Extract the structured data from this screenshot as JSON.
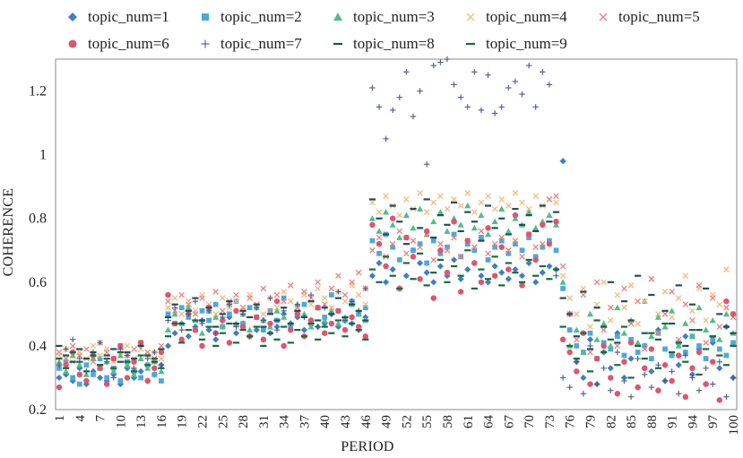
{
  "chart_data": {
    "type": "scatter",
    "xlabel": "PERIOD",
    "ylabel": "COHERENCE",
    "xlim": [
      0,
      100
    ],
    "ylim": [
      0.2,
      1.3
    ],
    "yticks": [
      0.2,
      0.4,
      0.6,
      0.8,
      1,
      1.2
    ],
    "ytick_labels": [
      "0.2",
      "0.4",
      "0.6",
      "0.8",
      "1",
      "1.2"
    ],
    "xticks": [
      1,
      4,
      7,
      10,
      13,
      16,
      19,
      22,
      25,
      28,
      31,
      34,
      37,
      40,
      43,
      46,
      49,
      52,
      55,
      58,
      61,
      64,
      67,
      70,
      73,
      76,
      79,
      82,
      85,
      88,
      91,
      94,
      97,
      100
    ],
    "xtick_labels": [
      "1",
      "4",
      "7",
      "10",
      "13",
      "16",
      "19",
      "22",
      "25",
      "28",
      "31",
      "34",
      "37",
      "40",
      "43",
      "46",
      "49",
      "52",
      "55",
      "58",
      "61",
      "64",
      "67",
      "70",
      "73",
      "76",
      "79",
      "82",
      "85",
      "88",
      "91",
      "94",
      "97",
      "100"
    ],
    "legend": [
      {
        "name": "topic_num=1",
        "marker": "diamond",
        "color": "#3f7fc4"
      },
      {
        "name": "topic_num=2",
        "marker": "square",
        "color": "#4ea8dc"
      },
      {
        "name": "topic_num=3",
        "marker": "triangle",
        "color": "#4fbf8a"
      },
      {
        "name": "topic_num=4",
        "marker": "x",
        "color": "#f2bb7a"
      },
      {
        "name": "topic_num=5",
        "marker": "x",
        "color": "#e8837a"
      },
      {
        "name": "topic_num=6",
        "marker": "circle",
        "color": "#e0556e"
      },
      {
        "name": "topic_num=7",
        "marker": "plus",
        "color": "#4a5a8c"
      },
      {
        "name": "topic_num=8",
        "marker": "dash",
        "color": "#1f4f5c"
      },
      {
        "name": "topic_num=9",
        "marker": "dash",
        "color": "#1a6a3a"
      }
    ],
    "series": [
      {
        "name": "topic_num=1",
        "values": [
          0.3,
          0.31,
          0.29,
          0.33,
          0.28,
          0.32,
          0.3,
          0.29,
          0.31,
          0.28,
          0.33,
          0.3,
          0.32,
          0.29,
          0.31,
          0.34,
          0.4,
          0.44,
          0.47,
          0.43,
          0.46,
          0.48,
          0.45,
          0.42,
          0.46,
          0.49,
          0.44,
          0.47,
          0.43,
          0.45,
          0.48,
          0.44,
          0.46,
          0.5,
          0.47,
          0.49,
          0.45,
          0.48,
          0.46,
          0.47,
          0.5,
          0.46,
          0.48,
          0.47,
          0.45,
          0.49,
          0.62,
          0.66,
          0.6,
          0.64,
          0.58,
          0.62,
          0.7,
          0.66,
          0.63,
          0.6,
          0.65,
          0.62,
          0.67,
          0.61,
          0.64,
          0.66,
          0.62,
          0.6,
          0.65,
          0.63,
          0.61,
          0.64,
          0.62,
          0.66,
          0.6,
          0.63,
          0.65,
          0.64,
          0.98,
          0.5,
          0.35,
          0.3,
          0.42,
          0.28,
          0.38,
          0.33,
          0.44,
          0.3,
          0.36,
          0.27,
          0.4,
          0.32,
          0.45,
          0.29,
          0.37,
          0.34,
          0.43,
          0.31,
          0.39,
          0.28,
          0.41,
          0.33,
          0.46,
          0.3
        ]
      },
      {
        "name": "topic_num=2",
        "values": [
          0.33,
          0.35,
          0.3,
          0.28,
          0.34,
          0.31,
          0.36,
          0.3,
          0.33,
          0.29,
          0.35,
          0.32,
          0.3,
          0.34,
          0.31,
          0.29,
          0.5,
          0.47,
          0.52,
          0.49,
          0.45,
          0.51,
          0.48,
          0.53,
          0.46,
          0.5,
          0.54,
          0.47,
          0.52,
          0.49,
          0.45,
          0.51,
          0.48,
          0.55,
          0.46,
          0.5,
          0.53,
          0.47,
          0.52,
          0.49,
          0.56,
          0.51,
          0.48,
          0.54,
          0.5,
          0.52,
          0.73,
          0.69,
          0.75,
          0.71,
          0.67,
          0.74,
          0.7,
          0.72,
          0.66,
          0.73,
          0.69,
          0.71,
          0.75,
          0.68,
          0.72,
          0.7,
          0.74,
          0.67,
          0.71,
          0.73,
          0.69,
          0.72,
          0.7,
          0.74,
          0.68,
          0.71,
          0.73,
          0.7,
          0.58,
          0.45,
          0.4,
          0.38,
          0.44,
          0.36,
          0.41,
          0.39,
          0.43,
          0.37,
          0.42,
          0.38,
          0.4,
          0.36,
          0.44,
          0.39,
          0.37,
          0.41,
          0.38,
          0.43,
          0.4,
          0.36,
          0.42,
          0.39,
          0.37,
          0.41
        ]
      },
      {
        "name": "topic_num=3",
        "values": [
          0.35,
          0.32,
          0.37,
          0.34,
          0.31,
          0.36,
          0.33,
          0.35,
          0.32,
          0.37,
          0.34,
          0.31,
          0.36,
          0.33,
          0.35,
          0.32,
          0.45,
          0.5,
          0.47,
          0.52,
          0.48,
          0.44,
          0.51,
          0.49,
          0.46,
          0.53,
          0.47,
          0.5,
          0.45,
          0.52,
          0.48,
          0.46,
          0.51,
          0.49,
          0.47,
          0.53,
          0.5,
          0.46,
          0.52,
          0.48,
          0.51,
          0.47,
          0.49,
          0.53,
          0.5,
          0.48,
          0.8,
          0.76,
          0.82,
          0.78,
          0.74,
          0.81,
          0.77,
          0.83,
          0.75,
          0.79,
          0.82,
          0.76,
          0.8,
          0.78,
          0.84,
          0.77,
          0.81,
          0.75,
          0.79,
          0.83,
          0.76,
          0.8,
          0.78,
          0.82,
          0.77,
          0.79,
          0.81,
          0.78,
          0.6,
          0.4,
          0.45,
          0.38,
          0.5,
          0.42,
          0.47,
          0.4,
          0.52,
          0.44,
          0.48,
          0.41,
          0.54,
          0.43,
          0.49,
          0.46,
          0.51,
          0.4,
          0.47,
          0.43,
          0.52,
          0.45,
          0.48,
          0.42,
          0.5,
          0.44
        ]
      },
      {
        "name": "topic_num=4",
        "values": [
          0.37,
          0.39,
          0.35,
          0.38,
          0.36,
          0.4,
          0.37,
          0.39,
          0.35,
          0.38,
          0.4,
          0.36,
          0.39,
          0.37,
          0.38,
          0.36,
          0.52,
          0.55,
          0.5,
          0.54,
          0.51,
          0.56,
          0.53,
          0.5,
          0.55,
          0.52,
          0.54,
          0.51,
          0.56,
          0.53,
          0.5,
          0.55,
          0.52,
          0.57,
          0.54,
          0.51,
          0.56,
          0.53,
          0.58,
          0.55,
          0.52,
          0.57,
          0.54,
          0.59,
          0.56,
          0.53,
          0.85,
          0.82,
          0.87,
          0.84,
          0.81,
          0.86,
          0.83,
          0.88,
          0.82,
          0.85,
          0.87,
          0.83,
          0.86,
          0.84,
          0.88,
          0.82,
          0.85,
          0.87,
          0.83,
          0.86,
          0.84,
          0.88,
          0.85,
          0.83,
          0.87,
          0.84,
          0.86,
          0.85,
          0.62,
          0.55,
          0.5,
          0.58,
          0.46,
          0.53,
          0.6,
          0.48,
          0.56,
          0.52,
          0.59,
          0.47,
          0.54,
          0.61,
          0.5,
          0.57,
          0.49,
          0.55,
          0.62,
          0.51,
          0.58,
          0.48,
          0.56,
          0.53,
          0.64,
          0.5
        ]
      },
      {
        "name": "topic_num=5",
        "values": [
          0.38,
          0.36,
          0.4,
          0.37,
          0.39,
          0.35,
          0.41,
          0.38,
          0.36,
          0.4,
          0.37,
          0.39,
          0.41,
          0.38,
          0.36,
          0.4,
          0.54,
          0.51,
          0.56,
          0.53,
          0.5,
          0.55,
          0.52,
          0.57,
          0.51,
          0.54,
          0.56,
          0.52,
          0.55,
          0.53,
          0.58,
          0.51,
          0.56,
          0.54,
          0.59,
          0.52,
          0.57,
          0.55,
          0.6,
          0.53,
          0.58,
          0.62,
          0.56,
          0.6,
          0.63,
          0.58,
          0.7,
          0.74,
          0.68,
          0.72,
          0.76,
          0.69,
          0.73,
          0.71,
          0.75,
          0.67,
          0.72,
          0.7,
          0.74,
          0.68,
          0.73,
          0.71,
          0.76,
          0.69,
          0.72,
          0.74,
          0.7,
          0.73,
          0.68,
          0.75,
          0.71,
          0.72,
          0.86,
          0.87,
          0.65,
          0.5,
          0.42,
          0.56,
          0.38,
          0.6,
          0.45,
          0.52,
          0.4,
          0.58,
          0.47,
          0.54,
          0.39,
          0.61,
          0.44,
          0.5,
          0.57,
          0.42,
          0.53,
          0.48,
          0.59,
          0.41,
          0.55,
          0.46,
          0.52,
          0.49
        ]
      },
      {
        "name": "topic_num=6",
        "values": [
          0.27,
          0.34,
          0.38,
          0.31,
          0.29,
          0.37,
          0.33,
          0.28,
          0.36,
          0.4,
          0.3,
          0.35,
          0.41,
          0.29,
          0.33,
          0.38,
          0.56,
          0.47,
          0.42,
          0.5,
          0.45,
          0.4,
          0.52,
          0.44,
          0.48,
          0.41,
          0.51,
          0.46,
          0.43,
          0.49,
          0.42,
          0.47,
          0.54,
          0.4,
          0.45,
          0.5,
          0.43,
          0.48,
          0.52,
          0.44,
          0.47,
          0.51,
          0.45,
          0.49,
          0.46,
          0.43,
          0.78,
          0.72,
          0.65,
          0.8,
          0.58,
          0.74,
          0.68,
          0.61,
          0.76,
          0.55,
          0.7,
          0.63,
          0.79,
          0.57,
          0.73,
          0.66,
          0.6,
          0.77,
          0.62,
          0.71,
          0.64,
          0.81,
          0.59,
          0.75,
          0.67,
          0.78,
          0.72,
          0.79,
          0.42,
          0.38,
          0.32,
          0.44,
          0.28,
          0.36,
          0.4,
          0.3,
          0.25,
          0.35,
          0.41,
          0.27,
          0.33,
          0.39,
          0.26,
          0.34,
          0.29,
          0.37,
          0.24,
          0.33,
          0.38,
          0.28,
          0.35,
          0.23,
          0.54,
          0.5
        ]
      },
      {
        "name": "topic_num=7",
        "values": [
          0.34,
          0.39,
          0.42,
          0.36,
          0.32,
          0.38,
          0.41,
          0.35,
          0.3,
          0.39,
          0.37,
          0.33,
          0.4,
          0.36,
          0.38,
          0.34,
          0.48,
          0.52,
          0.45,
          0.5,
          0.54,
          0.47,
          0.51,
          0.44,
          0.49,
          0.53,
          0.46,
          0.5,
          0.43,
          0.52,
          0.48,
          0.55,
          0.45,
          0.51,
          0.47,
          0.53,
          0.49,
          0.56,
          0.46,
          0.52,
          0.5,
          0.57,
          0.48,
          0.54,
          0.51,
          0.58,
          1.21,
          1.15,
          1.05,
          1.14,
          1.18,
          1.26,
          1.12,
          1.2,
          0.97,
          1.28,
          1.29,
          1.3,
          1.22,
          1.18,
          1.15,
          1.26,
          1.14,
          1.25,
          1.13,
          1.15,
          1.21,
          1.23,
          1.19,
          1.28,
          1.15,
          1.26,
          1.22,
          0.62,
          0.3,
          0.27,
          0.35,
          0.25,
          0.4,
          0.28,
          0.33,
          0.26,
          0.38,
          0.29,
          0.24,
          0.36,
          0.31,
          0.27,
          0.34,
          0.29,
          0.32,
          0.25,
          0.37,
          0.3,
          0.26,
          0.33,
          0.28,
          0.35,
          0.24,
          0.3
        ]
      },
      {
        "name": "topic_num=8",
        "values": [
          0.4,
          0.37,
          0.35,
          0.39,
          0.36,
          0.38,
          0.34,
          0.37,
          0.39,
          0.35,
          0.38,
          0.36,
          0.4,
          0.37,
          0.35,
          0.39,
          0.49,
          0.53,
          0.47,
          0.51,
          0.55,
          0.48,
          0.52,
          0.46,
          0.5,
          0.54,
          0.47,
          0.51,
          0.49,
          0.53,
          0.46,
          0.5,
          0.48,
          0.52,
          0.47,
          0.51,
          0.49,
          0.54,
          0.48,
          0.52,
          0.5,
          0.55,
          0.49,
          0.53,
          0.51,
          0.48,
          0.86,
          0.8,
          0.75,
          0.84,
          0.79,
          0.72,
          0.83,
          0.77,
          0.86,
          0.74,
          0.81,
          0.78,
          0.85,
          0.76,
          0.82,
          0.79,
          0.73,
          0.84,
          0.77,
          0.8,
          0.75,
          0.83,
          0.78,
          0.81,
          0.76,
          0.84,
          0.79,
          0.82,
          0.55,
          0.5,
          0.43,
          0.57,
          0.39,
          0.52,
          0.46,
          0.6,
          0.41,
          0.54,
          0.48,
          0.62,
          0.44,
          0.56,
          0.42,
          0.51,
          0.47,
          0.59,
          0.4,
          0.53,
          0.45,
          0.58,
          0.43,
          0.5,
          0.46,
          0.44
        ]
      },
      {
        "name": "topic_num=9",
        "values": [
          0.36,
          0.33,
          0.38,
          0.35,
          0.32,
          0.37,
          0.34,
          0.36,
          0.33,
          0.38,
          0.35,
          0.32,
          0.37,
          0.34,
          0.36,
          0.33,
          0.43,
          0.47,
          0.41,
          0.45,
          0.48,
          0.42,
          0.46,
          0.4,
          0.44,
          0.47,
          0.41,
          0.45,
          0.43,
          0.46,
          0.4,
          0.44,
          0.42,
          0.46,
          0.41,
          0.45,
          0.43,
          0.47,
          0.42,
          0.46,
          0.44,
          0.48,
          0.43,
          0.47,
          0.45,
          0.42,
          0.64,
          0.6,
          0.68,
          0.62,
          0.58,
          0.66,
          0.61,
          0.69,
          0.59,
          0.63,
          0.67,
          0.6,
          0.65,
          0.62,
          0.7,
          0.58,
          0.64,
          0.61,
          0.68,
          0.59,
          0.66,
          0.63,
          0.6,
          0.67,
          0.62,
          0.65,
          0.61,
          0.64,
          0.46,
          0.4,
          0.36,
          0.44,
          0.32,
          0.48,
          0.38,
          0.42,
          0.34,
          0.46,
          0.3,
          0.4,
          0.36,
          0.44,
          0.33,
          0.47,
          0.38,
          0.41,
          0.35,
          0.45,
          0.31,
          0.39,
          0.43,
          0.37,
          0.34,
          0.4
        ]
      }
    ]
  }
}
